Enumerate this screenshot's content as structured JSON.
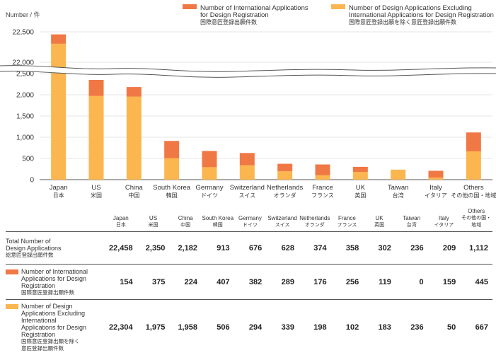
{
  "chart_data": {
    "type": "bar",
    "stacked": true,
    "unit_label": "Number / 件",
    "categories": [
      "Japan",
      "US",
      "China",
      "South Korea",
      "Germany",
      "Switzerland",
      "Netherlands",
      "France",
      "UK",
      "Taiwan",
      "Italy",
      "Others"
    ],
    "categories_jp": [
      "日本",
      "米国",
      "中国",
      "韓国",
      "ドイツ",
      "スイス",
      "オランダ",
      "フランス",
      "英国",
      "台湾",
      "イタリア",
      "その他の国・地域"
    ],
    "series": [
      {
        "name": "Number of Design Applications Excluding International Applications for Design Registration",
        "name_jp": "国際意匠登録出願を除く意匠登録出願件数",
        "color": "#FBB64F",
        "values": [
          22304,
          1975,
          1958,
          506,
          294,
          339,
          198,
          102,
          183,
          236,
          50,
          667
        ]
      },
      {
        "name": "Number of International Applications for Design Registration",
        "name_jp": "国際意匠登録出願件数",
        "color": "#F07845",
        "values": [
          154,
          375,
          224,
          407,
          382,
          289,
          176,
          256,
          119,
          0,
          159,
          445
        ]
      }
    ],
    "totals": [
      22458,
      2350,
      2182,
      913,
      676,
      628,
      374,
      358,
      302,
      236,
      209,
      1112
    ],
    "yticks_low": [
      "0",
      "500",
      "1,000",
      "1,500",
      "2,000",
      "2,500"
    ],
    "yticks_high": [
      "22,000",
      "22,500"
    ],
    "axis_break": [
      2500,
      22000
    ]
  },
  "legend": [
    {
      "label": "Number of International Applications\nfor Design Registration",
      "label_jp": "国際意匠登録出願件数",
      "color": "#F07845"
    },
    {
      "label": "Number of Design Applications Excluding\nInternational Applications for Design Registration",
      "label_jp": "国際意匠登録出願を除く意匠登録出願件数",
      "color": "#FBB64F"
    }
  ],
  "table": {
    "headers": [
      {
        "en": "Japan",
        "jp": "日本"
      },
      {
        "en": "US",
        "jp": "米国"
      },
      {
        "en": "China",
        "jp": "中国"
      },
      {
        "en": "South Korea",
        "jp": "韓国"
      },
      {
        "en": "Germany",
        "jp": "ドイツ"
      },
      {
        "en": "Switzerland",
        "jp": "スイス"
      },
      {
        "en": "Netherlands",
        "jp": "オランダ"
      },
      {
        "en": "France",
        "jp": "フランス"
      },
      {
        "en": "UK",
        "jp": "英国"
      },
      {
        "en": "Taiwan",
        "jp": "台湾"
      },
      {
        "en": "Italy",
        "jp": "イタリア"
      },
      {
        "en": "Others",
        "jp": "その他の国・地域"
      }
    ],
    "rows": [
      {
        "label": "Total Number of\nDesign Applications",
        "label_jp": "総意匠登録出願件数",
        "color": "",
        "values": [
          "22,458",
          "2,350",
          "2,182",
          "913",
          "676",
          "628",
          "374",
          "358",
          "302",
          "236",
          "209",
          "1,112"
        ]
      },
      {
        "label": "Number of International\nApplications for Design\nRegistration",
        "label_jp": "国際意匠登録出願件数",
        "color": "#F07845",
        "values": [
          "154",
          "375",
          "224",
          "407",
          "382",
          "289",
          "176",
          "256",
          "119",
          "0",
          "159",
          "445"
        ]
      },
      {
        "label": "Number of Design\nApplications Excluding\nInternational\nApplications for Design\nRegistration",
        "label_jp": "国際意匠登録出願を除く\n意匠登録出願件数",
        "color": "#FBB64F",
        "values": [
          "22,304",
          "1,975",
          "1,958",
          "506",
          "294",
          "339",
          "198",
          "102",
          "183",
          "236",
          "50",
          "667"
        ]
      }
    ]
  }
}
